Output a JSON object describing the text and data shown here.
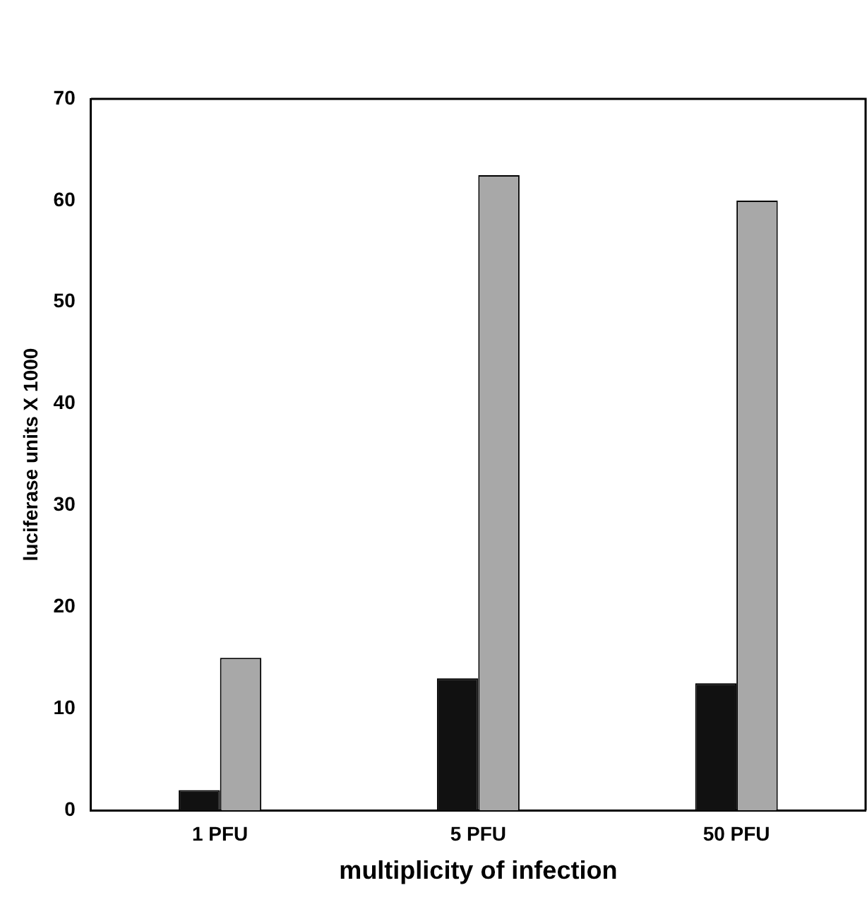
{
  "chart_data": {
    "type": "bar",
    "xlabel": "multiplicity of infection",
    "ylabel": "luciferase units X 1000",
    "categories": [
      "1 PFU",
      "5 PFU",
      "50 PFU"
    ],
    "series": [
      {
        "color": "#111111",
        "values": [
          2,
          13,
          12.5
        ]
      },
      {
        "color": "#a8a8a8",
        "values": [
          15,
          62.5,
          60
        ]
      }
    ],
    "ylim": [
      0,
      70
    ],
    "yticks": [
      0,
      10,
      20,
      30,
      40,
      50,
      60,
      70
    ],
    "grid": false,
    "legend": false
  }
}
